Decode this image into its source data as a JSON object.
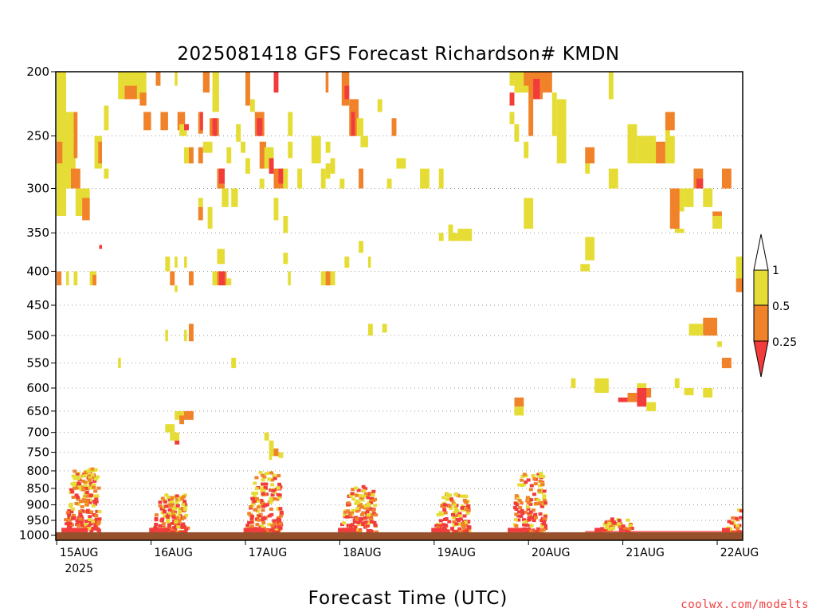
{
  "chart_data": {
    "type": "heatmap",
    "title": "2025081418 GFS Forecast Richardson# KMDN",
    "xlabel": "Forecast Time (UTC)",
    "ylabel": "",
    "credit": "coolwx.com/modelts",
    "x_ticks": [
      {
        "day": 0,
        "label": "15AUG",
        "sub": "2025"
      },
      {
        "day": 1,
        "label": "16AUG",
        "sub": ""
      },
      {
        "day": 2,
        "label": "17AUG",
        "sub": ""
      },
      {
        "day": 3,
        "label": "18AUG",
        "sub": ""
      },
      {
        "day": 4,
        "label": "19AUG",
        "sub": ""
      },
      {
        "day": 5,
        "label": "20AUG",
        "sub": ""
      },
      {
        "day": 6,
        "label": "21AUG",
        "sub": ""
      },
      {
        "day": 7,
        "label": "22AUG",
        "sub": ""
      }
    ],
    "x_range_days": [
      -0.01,
      7.27
    ],
    "y_ticks": [
      200,
      250,
      300,
      350,
      400,
      450,
      500,
      550,
      600,
      650,
      700,
      750,
      800,
      850,
      900,
      950,
      1000
    ],
    "y_range_hpa": [
      200,
      1018
    ],
    "y_scale": "log-pressure",
    "gridlines": "dotted horizontal",
    "ground_below_hpa": 990,
    "colorbar": {
      "levels": [
        "1",
        "0.5",
        "0.25"
      ],
      "colors": {
        "ge_1": "#ffffff",
        "half_to_1": "#e5dd35",
        "quarter_to_half": "#f0822a",
        "lt_quarter": "#f23c3c"
      },
      "placement": "right"
    },
    "colors": {
      "yellow": "#e5dd35",
      "orange": "#f0822a",
      "red": "#f23c3c",
      "ground": "#96502c"
    },
    "cells": [
      [
        0.0,
        0.1,
        200,
        300,
        "y"
      ],
      [
        0.1,
        0.2,
        230,
        300,
        "y"
      ],
      [
        0.18,
        0.22,
        230,
        270,
        "o"
      ],
      [
        0.0,
        0.1,
        300,
        330,
        "y"
      ],
      [
        0.2,
        0.35,
        300,
        330,
        "y"
      ],
      [
        0.27,
        0.35,
        310,
        335,
        "o"
      ],
      [
        0.0,
        0.06,
        255,
        275,
        "o"
      ],
      [
        0.15,
        0.25,
        280,
        300,
        "o"
      ],
      [
        0.4,
        0.48,
        250,
        280,
        "y"
      ],
      [
        0.44,
        0.48,
        255,
        275,
        "o"
      ],
      [
        0.5,
        0.55,
        225,
        245,
        "y"
      ],
      [
        0.5,
        0.55,
        280,
        290,
        "y"
      ],
      [
        0.65,
        0.95,
        200,
        220,
        "y"
      ],
      [
        0.72,
        0.85,
        210,
        220,
        "o"
      ],
      [
        0.88,
        0.95,
        215,
        225,
        "o"
      ],
      [
        0.92,
        1.0,
        230,
        245,
        "o"
      ],
      [
        1.1,
        1.18,
        230,
        245,
        "o"
      ],
      [
        1.28,
        1.36,
        230,
        245,
        "o"
      ],
      [
        1.3,
        1.38,
        240,
        250,
        "y"
      ],
      [
        1.35,
        1.4,
        240,
        245,
        "r"
      ],
      [
        1.5,
        1.55,
        230,
        248,
        "o"
      ],
      [
        1.52,
        1.55,
        230,
        245,
        "r"
      ],
      [
        1.55,
        1.62,
        200,
        215,
        "o"
      ],
      [
        1.65,
        1.72,
        200,
        230,
        "y"
      ],
      [
        1.62,
        1.72,
        235,
        250,
        "o"
      ],
      [
        1.65,
        1.7,
        235,
        250,
        "r"
      ],
      [
        1.55,
        1.65,
        255,
        265,
        "y"
      ],
      [
        1.5,
        1.55,
        260,
        275,
        "o"
      ],
      [
        1.4,
        1.45,
        260,
        275,
        "o"
      ],
      [
        1.35,
        1.4,
        260,
        275,
        "y"
      ],
      [
        1.7,
        1.78,
        280,
        300,
        "o"
      ],
      [
        1.72,
        1.78,
        280,
        295,
        "r"
      ],
      [
        1.75,
        1.82,
        300,
        320,
        "y"
      ],
      [
        1.85,
        1.92,
        300,
        320,
        "y"
      ],
      [
        1.9,
        1.95,
        240,
        255,
        "y"
      ],
      [
        1.95,
        2.0,
        255,
        265,
        "y"
      ],
      [
        1.5,
        1.55,
        310,
        320,
        "y"
      ],
      [
        1.5,
        1.55,
        320,
        335,
        "o"
      ],
      [
        1.6,
        1.65,
        320,
        345,
        "y"
      ],
      [
        1.8,
        1.85,
        260,
        275,
        "y"
      ],
      [
        1.05,
        1.1,
        200,
        210,
        "o"
      ],
      [
        1.25,
        1.28,
        200,
        210,
        "y"
      ],
      [
        2.0,
        2.05,
        200,
        225,
        "o"
      ],
      [
        2.05,
        2.1,
        220,
        230,
        "y"
      ],
      [
        2.1,
        2.2,
        230,
        250,
        "o"
      ],
      [
        2.12,
        2.18,
        235,
        250,
        "r"
      ],
      [
        2.15,
        2.22,
        255,
        280,
        "o"
      ],
      [
        2.2,
        2.3,
        260,
        280,
        "y"
      ],
      [
        2.25,
        2.3,
        270,
        285,
        "r"
      ],
      [
        2.3,
        2.4,
        280,
        300,
        "o"
      ],
      [
        2.35,
        2.4,
        280,
        295,
        "r"
      ],
      [
        2.4,
        2.45,
        280,
        300,
        "y"
      ],
      [
        2.0,
        2.05,
        270,
        285,
        "y"
      ],
      [
        2.15,
        2.2,
        290,
        300,
        "y"
      ],
      [
        2.3,
        2.35,
        310,
        335,
        "y"
      ],
      [
        2.4,
        2.45,
        330,
        350,
        "y"
      ],
      [
        2.45,
        2.5,
        255,
        270,
        "y"
      ],
      [
        2.55,
        2.6,
        280,
        300,
        "y"
      ],
      [
        2.3,
        2.35,
        200,
        215,
        "r"
      ],
      [
        2.45,
        2.5,
        230,
        250,
        "y"
      ],
      [
        2.7,
        2.8,
        250,
        275,
        "y"
      ],
      [
        2.9,
        2.95,
        270,
        285,
        "y"
      ],
      [
        2.85,
        2.9,
        255,
        265,
        "y"
      ],
      [
        3.02,
        3.1,
        200,
        225,
        "o"
      ],
      [
        3.05,
        3.1,
        210,
        220,
        "r"
      ],
      [
        3.1,
        3.2,
        220,
        250,
        "o"
      ],
      [
        3.12,
        3.16,
        230,
        250,
        "r"
      ],
      [
        3.18,
        3.25,
        235,
        250,
        "y"
      ],
      [
        3.22,
        3.3,
        250,
        260,
        "y"
      ],
      [
        3.4,
        3.45,
        220,
        230,
        "y"
      ],
      [
        3.55,
        3.6,
        235,
        250,
        "o"
      ],
      [
        3.2,
        3.25,
        280,
        300,
        "o"
      ],
      [
        3.6,
        3.7,
        270,
        280,
        "y"
      ],
      [
        3.85,
        3.95,
        280,
        300,
        "y"
      ],
      [
        4.05,
        4.1,
        280,
        300,
        "y"
      ],
      [
        3.5,
        3.55,
        290,
        300,
        "y"
      ],
      [
        2.85,
        2.9,
        275,
        290,
        "y"
      ],
      [
        2.8,
        2.85,
        280,
        300,
        "y"
      ],
      [
        2.85,
        2.88,
        200,
        215,
        "o"
      ],
      [
        3.0,
        3.05,
        290,
        300,
        "y"
      ],
      [
        4.05,
        4.1,
        350,
        360,
        "y"
      ],
      [
        4.15,
        4.25,
        350,
        360,
        "y"
      ],
      [
        4.25,
        4.4,
        345,
        360,
        "y"
      ],
      [
        4.15,
        4.2,
        340,
        350,
        "y"
      ],
      [
        4.8,
        4.85,
        200,
        210,
        "y"
      ],
      [
        4.8,
        4.85,
        215,
        225,
        "r"
      ],
      [
        4.85,
        5.0,
        200,
        215,
        "y"
      ],
      [
        4.95,
        5.05,
        200,
        210,
        "o"
      ],
      [
        5.0,
        5.15,
        200,
        220,
        "o"
      ],
      [
        5.05,
        5.12,
        205,
        220,
        "r"
      ],
      [
        5.15,
        5.25,
        200,
        215,
        "o"
      ],
      [
        5.25,
        5.3,
        215,
        250,
        "y"
      ],
      [
        5.3,
        5.4,
        220,
        275,
        "y"
      ],
      [
        5.0,
        5.05,
        220,
        250,
        "o"
      ],
      [
        4.8,
        4.85,
        230,
        240,
        "y"
      ],
      [
        4.85,
        4.9,
        240,
        255,
        "y"
      ],
      [
        4.95,
        5.0,
        255,
        270,
        "y"
      ],
      [
        4.95,
        5.05,
        310,
        345,
        "y"
      ],
      [
        5.6,
        5.7,
        260,
        275,
        "o"
      ],
      [
        5.6,
        5.65,
        275,
        285,
        "y"
      ],
      [
        5.85,
        5.95,
        280,
        300,
        "y"
      ],
      [
        6.05,
        6.15,
        240,
        275,
        "y"
      ],
      [
        6.15,
        6.35,
        250,
        275,
        "y"
      ],
      [
        6.35,
        6.45,
        255,
        275,
        "o"
      ],
      [
        6.45,
        6.5,
        230,
        250,
        "y"
      ],
      [
        6.45,
        6.55,
        250,
        275,
        "y"
      ],
      [
        5.85,
        5.9,
        200,
        220,
        "y"
      ],
      [
        6.45,
        6.55,
        230,
        245,
        "o"
      ],
      [
        6.75,
        6.85,
        280,
        300,
        "o"
      ],
      [
        6.78,
        6.85,
        290,
        300,
        "r"
      ],
      [
        6.65,
        6.75,
        300,
        320,
        "y"
      ],
      [
        6.55,
        6.65,
        300,
        325,
        "y"
      ],
      [
        6.85,
        6.95,
        300,
        320,
        "y"
      ],
      [
        6.5,
        6.6,
        320,
        345,
        "y"
      ],
      [
        6.95,
        7.05,
        325,
        335,
        "o"
      ],
      [
        6.95,
        7.05,
        330,
        345,
        "y"
      ],
      [
        7.05,
        7.15,
        280,
        300,
        "o"
      ],
      [
        7.2,
        7.27,
        380,
        415,
        "y"
      ],
      [
        7.2,
        7.27,
        410,
        430,
        "o"
      ],
      [
        5.6,
        5.7,
        355,
        385,
        "y"
      ],
      [
        6.55,
        6.65,
        345,
        350,
        "y"
      ],
      [
        6.5,
        6.6,
        300,
        345,
        "o"
      ],
      [
        0.0,
        0.05,
        400,
        420,
        "o"
      ],
      [
        0.1,
        0.13,
        400,
        420,
        "y"
      ],
      [
        0.18,
        0.22,
        400,
        420,
        "y"
      ],
      [
        0.35,
        0.42,
        400,
        420,
        "y"
      ],
      [
        0.38,
        0.42,
        405,
        420,
        "o"
      ],
      [
        0.45,
        0.48,
        365,
        370,
        "r"
      ],
      [
        1.15,
        1.2,
        380,
        400,
        "y"
      ],
      [
        1.25,
        1.28,
        380,
        395,
        "y"
      ],
      [
        1.35,
        1.38,
        380,
        395,
        "y"
      ],
      [
        1.2,
        1.25,
        400,
        420,
        "o"
      ],
      [
        1.4,
        1.45,
        400,
        420,
        "o"
      ],
      [
        1.25,
        1.28,
        420,
        430,
        "y"
      ],
      [
        1.7,
        1.78,
        370,
        390,
        "y"
      ],
      [
        1.7,
        1.8,
        400,
        420,
        "o"
      ],
      [
        1.72,
        1.78,
        400,
        420,
        "r"
      ],
      [
        1.65,
        1.7,
        400,
        420,
        "y"
      ],
      [
        1.8,
        1.85,
        410,
        420,
        "y"
      ],
      [
        2.4,
        2.45,
        375,
        390,
        "y"
      ],
      [
        2.45,
        2.48,
        400,
        420,
        "y"
      ],
      [
        2.8,
        2.9,
        400,
        420,
        "y"
      ],
      [
        2.85,
        2.9,
        400,
        420,
        "o"
      ],
      [
        2.9,
        2.95,
        400,
        420,
        "y"
      ],
      [
        3.05,
        3.1,
        380,
        395,
        "y"
      ],
      [
        3.2,
        3.25,
        360,
        375,
        "y"
      ],
      [
        3.3,
        3.33,
        380,
        395,
        "y"
      ],
      [
        5.55,
        5.65,
        390,
        400,
        "y"
      ],
      [
        1.15,
        1.18,
        490,
        510,
        "y"
      ],
      [
        1.35,
        1.38,
        490,
        510,
        "y"
      ],
      [
        1.4,
        1.45,
        480,
        510,
        "o"
      ],
      [
        3.3,
        3.35,
        480,
        500,
        "y"
      ],
      [
        3.45,
        3.5,
        480,
        495,
        "y"
      ],
      [
        6.7,
        6.85,
        480,
        500,
        "y"
      ],
      [
        6.85,
        7.0,
        470,
        500,
        "o"
      ],
      [
        7.0,
        7.05,
        510,
        520,
        "y"
      ],
      [
        7.05,
        7.15,
        540,
        560,
        "o"
      ],
      [
        0.65,
        0.68,
        540,
        560,
        "y"
      ],
      [
        1.85,
        1.9,
        540,
        560,
        "y"
      ],
      [
        5.45,
        5.5,
        580,
        600,
        "y"
      ],
      [
        5.7,
        5.85,
        580,
        610,
        "y"
      ],
      [
        5.95,
        6.05,
        620,
        630,
        "r"
      ],
      [
        6.05,
        6.15,
        610,
        630,
        "o"
      ],
      [
        6.15,
        6.25,
        590,
        610,
        "y"
      ],
      [
        6.2,
        6.3,
        600,
        620,
        "o"
      ],
      [
        6.15,
        6.25,
        600,
        640,
        "r"
      ],
      [
        6.25,
        6.35,
        630,
        650,
        "y"
      ],
      [
        4.85,
        4.95,
        620,
        640,
        "o"
      ],
      [
        4.85,
        4.95,
        640,
        660,
        "y"
      ],
      [
        6.55,
        6.6,
        580,
        600,
        "y"
      ],
      [
        6.65,
        6.75,
        600,
        615,
        "y"
      ],
      [
        6.85,
        6.95,
        600,
        620,
        "y"
      ],
      [
        1.25,
        1.35,
        650,
        670,
        "y"
      ],
      [
        1.35,
        1.45,
        650,
        670,
        "o"
      ],
      [
        1.3,
        1.35,
        660,
        680,
        "o"
      ],
      [
        1.15,
        1.25,
        680,
        700,
        "y"
      ],
      [
        1.2,
        1.3,
        700,
        720,
        "y"
      ],
      [
        1.25,
        1.3,
        720,
        730,
        "r"
      ],
      [
        2.2,
        2.25,
        700,
        720,
        "y"
      ],
      [
        2.25,
        2.3,
        720,
        760,
        "y"
      ],
      [
        2.3,
        2.35,
        740,
        760,
        "o"
      ],
      [
        2.35,
        2.4,
        750,
        765,
        "y"
      ],
      [
        2.25,
        2.28,
        760,
        770,
        "y"
      ]
    ],
    "pbl_bursts": [
      {
        "day": 0.15,
        "base": 980,
        "top": 790,
        "intensity": 1.0
      },
      {
        "day": 1.08,
        "base": 985,
        "top": 860,
        "intensity": 0.7
      },
      {
        "day": 2.08,
        "base": 985,
        "top": 800,
        "intensity": 0.8
      },
      {
        "day": 3.08,
        "base": 985,
        "top": 840,
        "intensity": 0.7
      },
      {
        "day": 4.07,
        "base": 985,
        "top": 860,
        "intensity": 0.6
      },
      {
        "day": 4.88,
        "base": 985,
        "top": 800,
        "intensity": 0.6
      },
      {
        "day": 5.8,
        "base": 990,
        "top": 940,
        "intensity": 0.3
      },
      {
        "day": 7.15,
        "base": 990,
        "top": 900,
        "intensity": 0.3
      }
    ]
  }
}
